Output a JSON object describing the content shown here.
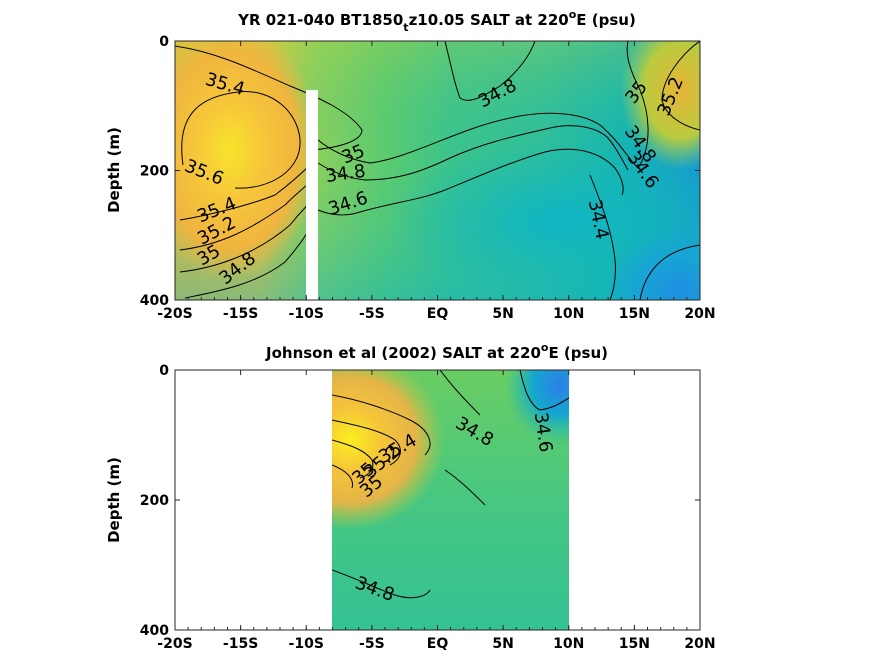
{
  "chart_data": [
    {
      "type": "heatmap",
      "title_prefix": "YR 021-040 BT1850",
      "title_subscript": "t",
      "title_mid": "z10.05 SALT at 220",
      "title_superscript": "o",
      "title_suffix": "E (psu)",
      "xlabel": "",
      "ylabel": "Depth (m)",
      "x": [
        "-20S",
        "-15S",
        "-10S",
        "-5S",
        "EQ",
        "5N",
        "10N",
        "15N",
        "20N"
      ],
      "xlim": [
        -20,
        20
      ],
      "y_ticks": [
        "0",
        "200",
        "400"
      ],
      "ylim": [
        0,
        400
      ],
      "y_reversed": true,
      "gap_latitude": -9.6,
      "contour_labels": [
        {
          "text": "35.4",
          "lat": -16.2,
          "depth": 68,
          "angle": 16
        },
        {
          "text": "35.6",
          "lat": -17.8,
          "depth": 204,
          "angle": 22
        },
        {
          "text": "35.4",
          "lat": -16.8,
          "depth": 262,
          "angle": -22
        },
        {
          "text": "35.2",
          "lat": -16.8,
          "depth": 294,
          "angle": -28
        },
        {
          "text": "35",
          "lat": -17.4,
          "depth": 332,
          "angle": -30
        },
        {
          "text": "34.8",
          "lat": -15.2,
          "depth": 352,
          "angle": -38
        },
        {
          "text": "35",
          "lat": -6.4,
          "depth": 176,
          "angle": -22
        },
        {
          "text": "34.8",
          "lat": -7.0,
          "depth": 206,
          "angle": -8
        },
        {
          "text": "34.6",
          "lat": -6.8,
          "depth": 252,
          "angle": -18
        },
        {
          "text": "34.8",
          "lat": 4.6,
          "depth": 82,
          "angle": -28
        },
        {
          "text": "35",
          "lat": 15.2,
          "depth": 80,
          "angle": -52
        },
        {
          "text": "35.2",
          "lat": 17.8,
          "depth": 86,
          "angle": -68
        },
        {
          "text": "34.8",
          "lat": 15.4,
          "depth": 160,
          "angle": 55
        },
        {
          "text": "34.6",
          "lat": 15.6,
          "depth": 200,
          "angle": 55
        },
        {
          "text": "34.4",
          "lat": 12.2,
          "depth": 276,
          "angle": 78
        }
      ]
    },
    {
      "type": "heatmap",
      "title_prefix": "Johnson et al (2002) SALT at 220",
      "title_superscript": "o",
      "title_suffix": "E (psu)",
      "xlabel": "",
      "ylabel": "Depth (m)",
      "x": [
        "-20S",
        "-15S",
        "-10S",
        "-5S",
        "EQ",
        "5N",
        "10N",
        "15N",
        "20N"
      ],
      "xlim": [
        -20,
        20
      ],
      "y_ticks": [
        "0",
        "200",
        "400"
      ],
      "ylim": [
        0,
        400
      ],
      "y_reversed": true,
      "data_lat_range": [
        -8,
        10
      ],
      "contour_labels": [
        {
          "text": "34.8",
          "lat": 2.8,
          "depth": 96,
          "angle": 30
        },
        {
          "text": "34.6",
          "lat": 8.0,
          "depth": 96,
          "angle": 82
        },
        {
          "text": "35.4",
          "lat": -3.0,
          "depth": 122,
          "angle": -30
        },
        {
          "text": "35.2",
          "lat": -4.2,
          "depth": 142,
          "angle": -40
        },
        {
          "text": "35",
          "lat": -5.6,
          "depth": 160,
          "angle": -40
        },
        {
          "text": "35",
          "lat": -5.0,
          "depth": 180,
          "angle": -40
        },
        {
          "text": "34.8",
          "lat": -4.8,
          "depth": 338,
          "angle": 20
        }
      ]
    }
  ]
}
